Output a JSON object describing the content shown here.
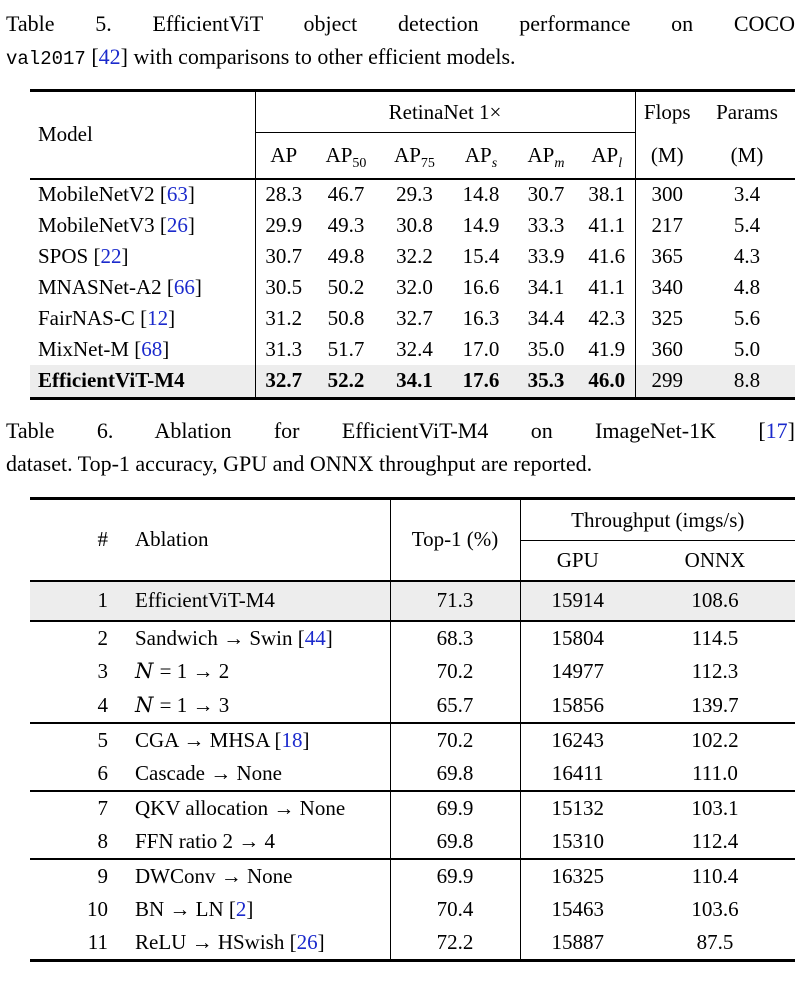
{
  "page": {
    "background": "#ffffff",
    "text_color": "#000000",
    "cite_color": "#1b2acc",
    "highlight_color": "#ededed"
  },
  "caption5": {
    "lines": [
      [
        {
          "t": "Table 5.  EfficientViT object detection performance on COCO"
        }
      ],
      [
        {
          "t": "val2017",
          "style": "mono"
        },
        {
          "t": " "
        },
        {
          "t": "42",
          "style": "cite"
        },
        {
          "t": " with comparisons to other efficient models."
        }
      ]
    ]
  },
  "table5": {
    "header": {
      "model": "Model",
      "group": "RetinaNet 1×",
      "flops": "Flops",
      "params": "Params",
      "unit": "(M)",
      "ap_cols": [
        {
          "base": "AP",
          "sub": ""
        },
        {
          "base": "AP",
          "sub": "50"
        },
        {
          "base": "AP",
          "sub": "75"
        },
        {
          "base": "AP",
          "sub": "s"
        },
        {
          "base": "AP",
          "sub": "m"
        },
        {
          "base": "AP",
          "sub": "l"
        }
      ]
    },
    "rows": [
      {
        "model": "MobileNetV2",
        "cite": "63",
        "values": [
          "28.3",
          "46.7",
          "29.3",
          "14.8",
          "30.7",
          "38.1"
        ],
        "flops": "300",
        "params": "3.4",
        "bold": false,
        "highlight": false
      },
      {
        "model": "MobileNetV3",
        "cite": "26",
        "values": [
          "29.9",
          "49.3",
          "30.8",
          "14.9",
          "33.3",
          "41.1"
        ],
        "flops": "217",
        "params": "5.4",
        "bold": false,
        "highlight": false
      },
      {
        "model": "SPOS",
        "cite": "22",
        "values": [
          "30.7",
          "49.8",
          "32.2",
          "15.4",
          "33.9",
          "41.6"
        ],
        "flops": "365",
        "params": "4.3",
        "bold": false,
        "highlight": false
      },
      {
        "model": "MNASNet-A2",
        "cite": "66",
        "values": [
          "30.5",
          "50.2",
          "32.0",
          "16.6",
          "34.1",
          "41.1"
        ],
        "flops": "340",
        "params": "4.8",
        "bold": false,
        "highlight": false
      },
      {
        "model": "FairNAS-C",
        "cite": "12",
        "values": [
          "31.2",
          "50.8",
          "32.7",
          "16.3",
          "34.4",
          "42.3"
        ],
        "flops": "325",
        "params": "5.6",
        "bold": false,
        "highlight": false
      },
      {
        "model": "MixNet-M",
        "cite": "68",
        "values": [
          "31.3",
          "51.7",
          "32.4",
          "17.0",
          "35.0",
          "41.9"
        ],
        "flops": "360",
        "params": "5.0",
        "bold": false,
        "highlight": false
      },
      {
        "model": "EfficientViT-M4",
        "cite": "",
        "values": [
          "32.7",
          "52.2",
          "34.1",
          "17.6",
          "35.3",
          "46.0"
        ],
        "flops": "299",
        "params": "8.8",
        "bold": true,
        "highlight": true
      }
    ]
  },
  "caption6": {
    "lines": [
      [
        {
          "t": "Table 6.  Ablation for EfficientViT-M4 on ImageNet-1K "
        },
        {
          "t": "17",
          "style": "cite"
        }
      ],
      [
        {
          "t": "dataset. Top-1 accuracy, GPU and ONNX throughput are reported."
        }
      ]
    ]
  },
  "table6": {
    "header": {
      "num": "#",
      "ablation": "Ablation",
      "top1": "Top-1 (%)",
      "throughput": "Throughput (imgs/s)",
      "gpu": "GPU",
      "onnx": "ONNX"
    },
    "rows": [
      {
        "num": "1",
        "label": [
          {
            "t": "EfficientViT-M4"
          }
        ],
        "top1": "71.3",
        "gpu": "15914",
        "onnx": "108.6",
        "group": 1,
        "highlight": true
      },
      {
        "num": "2",
        "label": [
          {
            "t": "Sandwich → Swin "
          },
          {
            "t": "44",
            "style": "cite"
          }
        ],
        "top1": "68.3",
        "gpu": "15804",
        "onnx": "114.5",
        "group": 2,
        "highlight": false
      },
      {
        "num": "3",
        "label": [
          {
            "t": "N",
            "style": "mathcal"
          },
          {
            "t": " = 1 → 2"
          }
        ],
        "top1": "70.2",
        "gpu": "14977",
        "onnx": "112.3",
        "group": 2,
        "highlight": false
      },
      {
        "num": "4",
        "label": [
          {
            "t": "N",
            "style": "mathcal"
          },
          {
            "t": " = 1 → 3"
          }
        ],
        "top1": "65.7",
        "gpu": "15856",
        "onnx": "139.7",
        "group": 2,
        "highlight": false
      },
      {
        "num": "5",
        "label": [
          {
            "t": "CGA → MHSA "
          },
          {
            "t": "18",
            "style": "cite"
          }
        ],
        "top1": "70.2",
        "gpu": "16243",
        "onnx": "102.2",
        "group": 3,
        "highlight": false
      },
      {
        "num": "6",
        "label": [
          {
            "t": "Cascade → None"
          }
        ],
        "top1": "69.8",
        "gpu": "16411",
        "onnx": "111.0",
        "group": 3,
        "highlight": false
      },
      {
        "num": "7",
        "label": [
          {
            "t": "QKV allocation → None"
          }
        ],
        "top1": "69.9",
        "gpu": "15132",
        "onnx": "103.1",
        "group": 4,
        "highlight": false
      },
      {
        "num": "8",
        "label": [
          {
            "t": "FFN ratio 2 → 4"
          }
        ],
        "top1": "69.8",
        "gpu": "15310",
        "onnx": "112.4",
        "group": 4,
        "highlight": false
      },
      {
        "num": "9",
        "label": [
          {
            "t": "DWConv → None"
          }
        ],
        "top1": "69.9",
        "gpu": "16325",
        "onnx": "110.4",
        "group": 5,
        "highlight": false
      },
      {
        "num": "10",
        "label": [
          {
            "t": "BN → LN "
          },
          {
            "t": "2",
            "style": "cite"
          }
        ],
        "top1": "70.4",
        "gpu": "15463",
        "onnx": "103.6",
        "group": 5,
        "highlight": false
      },
      {
        "num": "11",
        "label": [
          {
            "t": "ReLU → HSwish "
          },
          {
            "t": "26",
            "style": "cite"
          }
        ],
        "top1": "72.2",
        "gpu": "15887",
        "onnx": "87.5",
        "group": 5,
        "highlight": false
      }
    ]
  }
}
